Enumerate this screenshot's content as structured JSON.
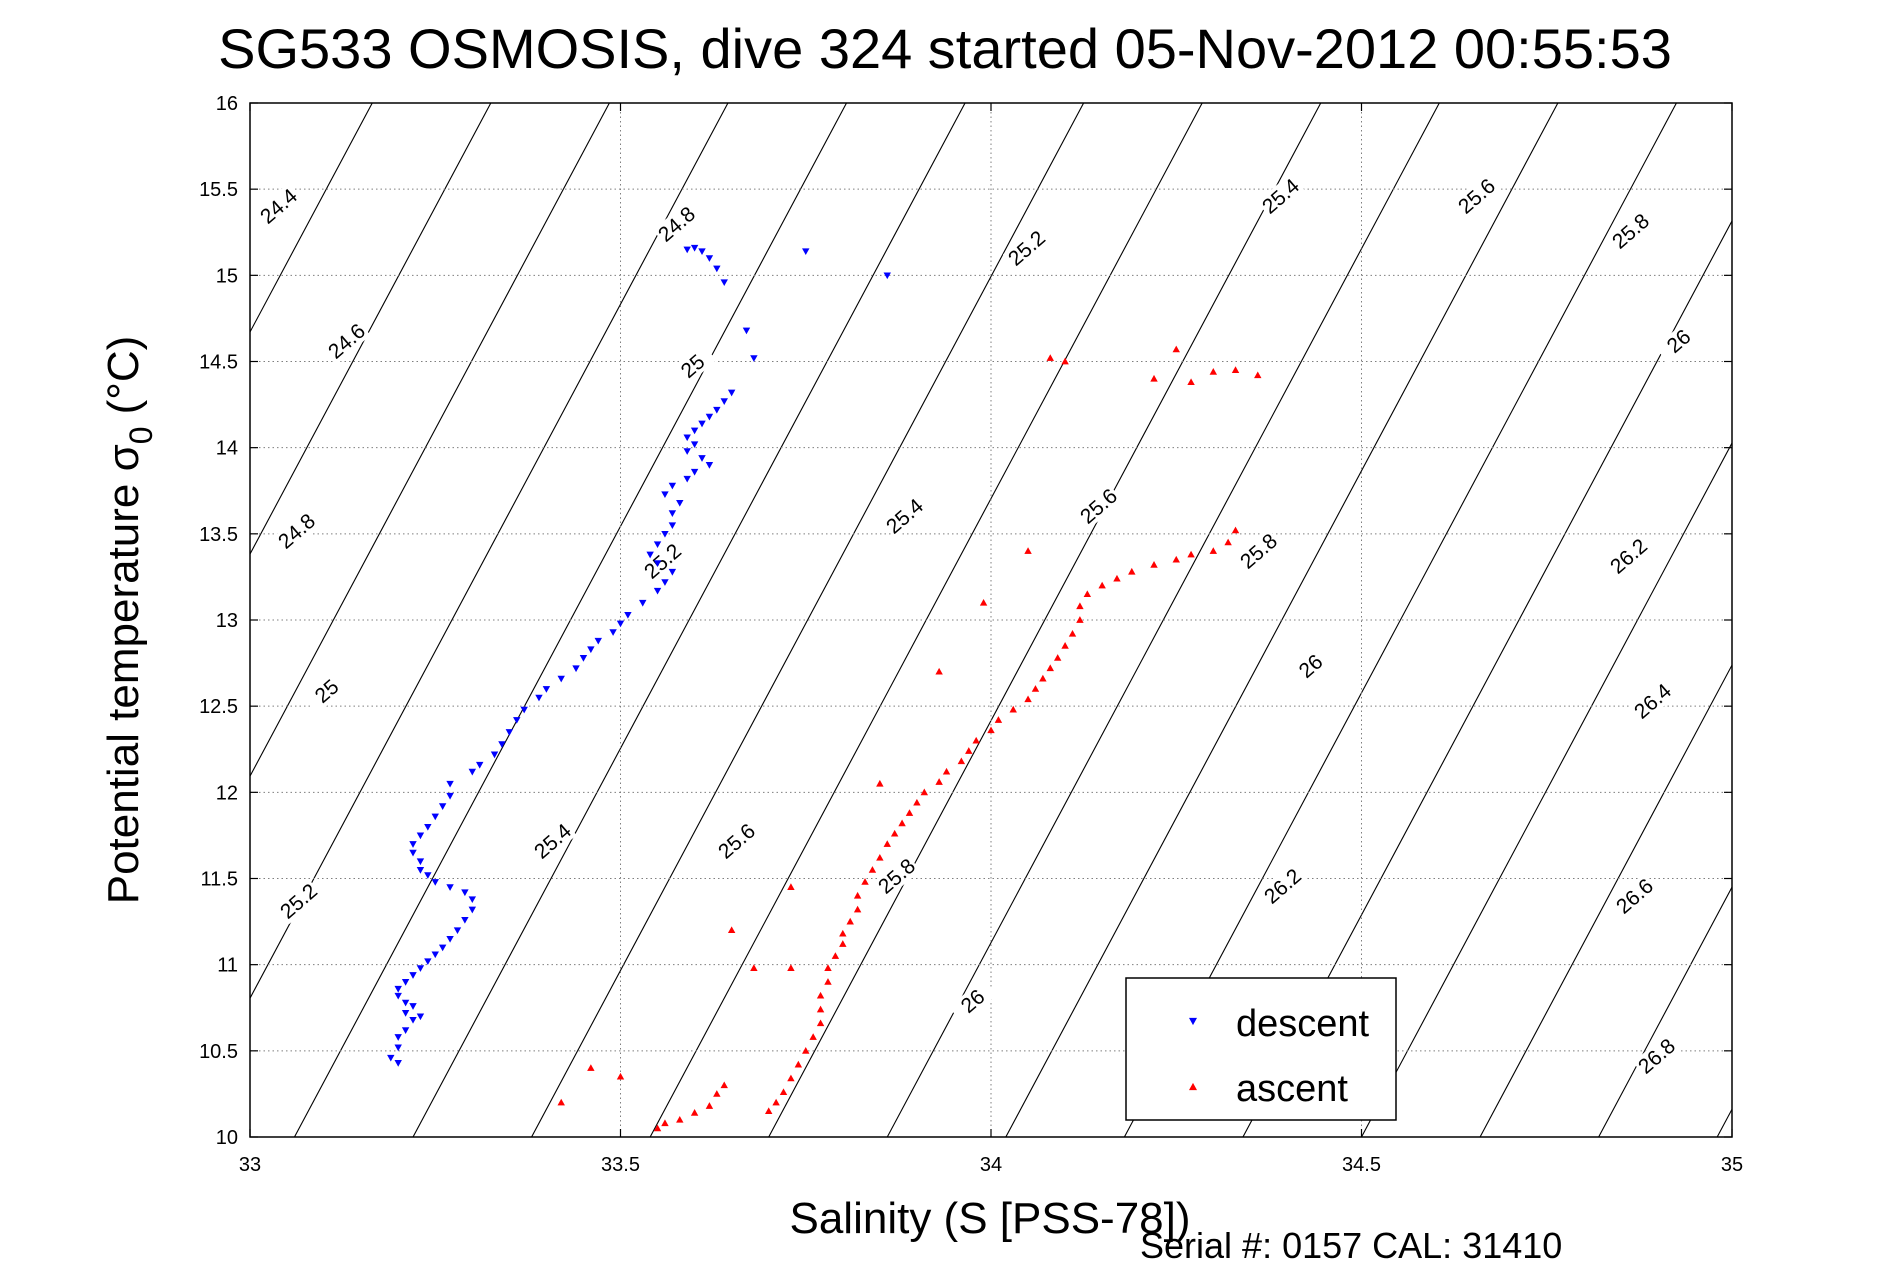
{
  "chart_data": {
    "type": "scatter",
    "title": "SG533 OSMOSIS, dive 324 started 05-Nov-2012 00:55:53",
    "xlabel": "Salinity (S [PSS-78])",
    "ylabel_main": "Potential temperature σ",
    "ylabel_sub": "0",
    "ylabel_unit": "(°C)",
    "xlim": [
      33,
      35
    ],
    "ylim": [
      10,
      16
    ],
    "xticks": [
      "33",
      "33.5",
      "34",
      "34.5",
      "35"
    ],
    "yticks": [
      "10",
      "10.5",
      "11",
      "11.5",
      "12",
      "12.5",
      "13",
      "13.5",
      "14",
      "14.5",
      "15",
      "15.5",
      "16"
    ],
    "grid": true,
    "legend_position": "lower-right inside",
    "footer": "Serial #: 0157  CAL: 31410",
    "series": [
      {
        "name": "descent",
        "marker": "triangle-down",
        "color": "#0000ff",
        "points": [
          [
            33.2,
            10.43
          ],
          [
            33.19,
            10.46
          ],
          [
            33.2,
            10.52
          ],
          [
            33.2,
            10.58
          ],
          [
            33.21,
            10.62
          ],
          [
            33.22,
            10.68
          ],
          [
            33.21,
            10.72
          ],
          [
            33.23,
            10.7
          ],
          [
            33.22,
            10.76
          ],
          [
            33.21,
            10.78
          ],
          [
            33.2,
            10.82
          ],
          [
            33.2,
            10.86
          ],
          [
            33.21,
            10.9
          ],
          [
            33.22,
            10.94
          ],
          [
            33.23,
            10.98
          ],
          [
            33.24,
            11.02
          ],
          [
            33.25,
            11.06
          ],
          [
            33.26,
            11.1
          ],
          [
            33.27,
            11.15
          ],
          [
            33.28,
            11.2
          ],
          [
            33.29,
            11.26
          ],
          [
            33.3,
            11.32
          ],
          [
            33.3,
            11.38
          ],
          [
            33.29,
            11.42
          ],
          [
            33.27,
            11.45
          ],
          [
            33.25,
            11.48
          ],
          [
            33.24,
            11.52
          ],
          [
            33.23,
            11.55
          ],
          [
            33.23,
            11.6
          ],
          [
            33.22,
            11.65
          ],
          [
            33.22,
            11.7
          ],
          [
            33.23,
            11.75
          ],
          [
            33.24,
            11.8
          ],
          [
            33.25,
            11.86
          ],
          [
            33.26,
            11.92
          ],
          [
            33.27,
            11.98
          ],
          [
            33.27,
            12.05
          ],
          [
            33.3,
            12.12
          ],
          [
            33.31,
            12.16
          ],
          [
            33.33,
            12.22
          ],
          [
            33.34,
            12.28
          ],
          [
            33.35,
            12.35
          ],
          [
            33.36,
            12.42
          ],
          [
            33.37,
            12.48
          ],
          [
            33.39,
            12.55
          ],
          [
            33.4,
            12.6
          ],
          [
            33.42,
            12.66
          ],
          [
            33.44,
            12.72
          ],
          [
            33.45,
            12.78
          ],
          [
            33.46,
            12.83
          ],
          [
            33.47,
            12.88
          ],
          [
            33.49,
            12.93
          ],
          [
            33.5,
            12.98
          ],
          [
            33.51,
            13.03
          ],
          [
            33.53,
            13.1
          ],
          [
            33.55,
            13.17
          ],
          [
            33.56,
            13.22
          ],
          [
            33.57,
            13.28
          ],
          [
            33.55,
            13.33
          ],
          [
            33.54,
            13.38
          ],
          [
            33.55,
            13.44
          ],
          [
            33.56,
            13.5
          ],
          [
            33.57,
            13.55
          ],
          [
            33.57,
            13.62
          ],
          [
            33.58,
            13.68
          ],
          [
            33.56,
            13.73
          ],
          [
            33.57,
            13.78
          ],
          [
            33.59,
            13.82
          ],
          [
            33.6,
            13.86
          ],
          [
            33.62,
            13.9
          ],
          [
            33.61,
            13.94
          ],
          [
            33.59,
            13.98
          ],
          [
            33.6,
            14.02
          ],
          [
            33.59,
            14.06
          ],
          [
            33.6,
            14.1
          ],
          [
            33.61,
            14.14
          ],
          [
            33.62,
            14.18
          ],
          [
            33.63,
            14.22
          ],
          [
            33.64,
            14.27
          ],
          [
            33.65,
            14.32
          ],
          [
            33.68,
            14.52
          ],
          [
            33.67,
            14.68
          ],
          [
            33.64,
            14.96
          ],
          [
            33.63,
            15.04
          ],
          [
            33.62,
            15.1
          ],
          [
            33.61,
            15.14
          ],
          [
            33.59,
            15.15
          ],
          [
            33.6,
            15.16
          ],
          [
            33.75,
            15.14
          ],
          [
            33.86,
            15.0
          ]
        ]
      },
      {
        "name": "ascent",
        "marker": "triangle-up",
        "color": "#ff0000",
        "points": [
          [
            33.55,
            10.05
          ],
          [
            33.56,
            10.08
          ],
          [
            33.58,
            10.1
          ],
          [
            33.6,
            10.14
          ],
          [
            33.62,
            10.18
          ],
          [
            33.63,
            10.25
          ],
          [
            33.64,
            10.3
          ],
          [
            33.42,
            10.2
          ],
          [
            33.46,
            10.4
          ],
          [
            33.5,
            10.35
          ],
          [
            33.7,
            10.15
          ],
          [
            33.71,
            10.2
          ],
          [
            33.72,
            10.26
          ],
          [
            33.73,
            10.34
          ],
          [
            33.74,
            10.42
          ],
          [
            33.75,
            10.5
          ],
          [
            33.76,
            10.58
          ],
          [
            33.77,
            10.66
          ],
          [
            33.77,
            10.74
          ],
          [
            33.77,
            10.82
          ],
          [
            33.78,
            10.9
          ],
          [
            33.78,
            10.98
          ],
          [
            33.79,
            11.05
          ],
          [
            33.8,
            11.12
          ],
          [
            33.8,
            11.18
          ],
          [
            33.81,
            11.25
          ],
          [
            33.82,
            11.32
          ],
          [
            33.82,
            11.4
          ],
          [
            33.83,
            11.48
          ],
          [
            33.84,
            11.55
          ],
          [
            33.85,
            11.62
          ],
          [
            33.86,
            11.7
          ],
          [
            33.87,
            11.76
          ],
          [
            33.88,
            11.82
          ],
          [
            33.89,
            11.88
          ],
          [
            33.9,
            11.94
          ],
          [
            33.91,
            12.0
          ],
          [
            33.93,
            12.06
          ],
          [
            33.94,
            12.12
          ],
          [
            33.96,
            12.18
          ],
          [
            33.97,
            12.24
          ],
          [
            33.98,
            12.3
          ],
          [
            34.0,
            12.36
          ],
          [
            34.01,
            12.42
          ],
          [
            34.03,
            12.48
          ],
          [
            34.05,
            12.54
          ],
          [
            34.06,
            12.6
          ],
          [
            34.07,
            12.66
          ],
          [
            34.08,
            12.72
          ],
          [
            34.09,
            12.78
          ],
          [
            34.1,
            12.85
          ],
          [
            34.11,
            12.92
          ],
          [
            34.12,
            13.0
          ],
          [
            34.12,
            13.08
          ],
          [
            34.13,
            13.15
          ],
          [
            34.15,
            13.2
          ],
          [
            34.17,
            13.24
          ],
          [
            34.19,
            13.28
          ],
          [
            34.22,
            13.32
          ],
          [
            34.25,
            13.35
          ],
          [
            34.27,
            13.38
          ],
          [
            34.3,
            13.4
          ],
          [
            34.32,
            13.45
          ],
          [
            34.33,
            13.52
          ],
          [
            34.05,
            13.4
          ],
          [
            33.99,
            13.1
          ],
          [
            33.93,
            12.7
          ],
          [
            33.85,
            12.05
          ],
          [
            33.73,
            11.45
          ],
          [
            33.65,
            11.2
          ],
          [
            33.68,
            10.98
          ],
          [
            33.73,
            10.98
          ],
          [
            34.08,
            14.52
          ],
          [
            34.1,
            14.5
          ],
          [
            34.27,
            14.38
          ],
          [
            34.3,
            14.44
          ],
          [
            34.33,
            14.45
          ],
          [
            34.36,
            14.42
          ],
          [
            34.22,
            14.4
          ],
          [
            34.25,
            14.57
          ]
        ]
      }
    ]
  }
}
